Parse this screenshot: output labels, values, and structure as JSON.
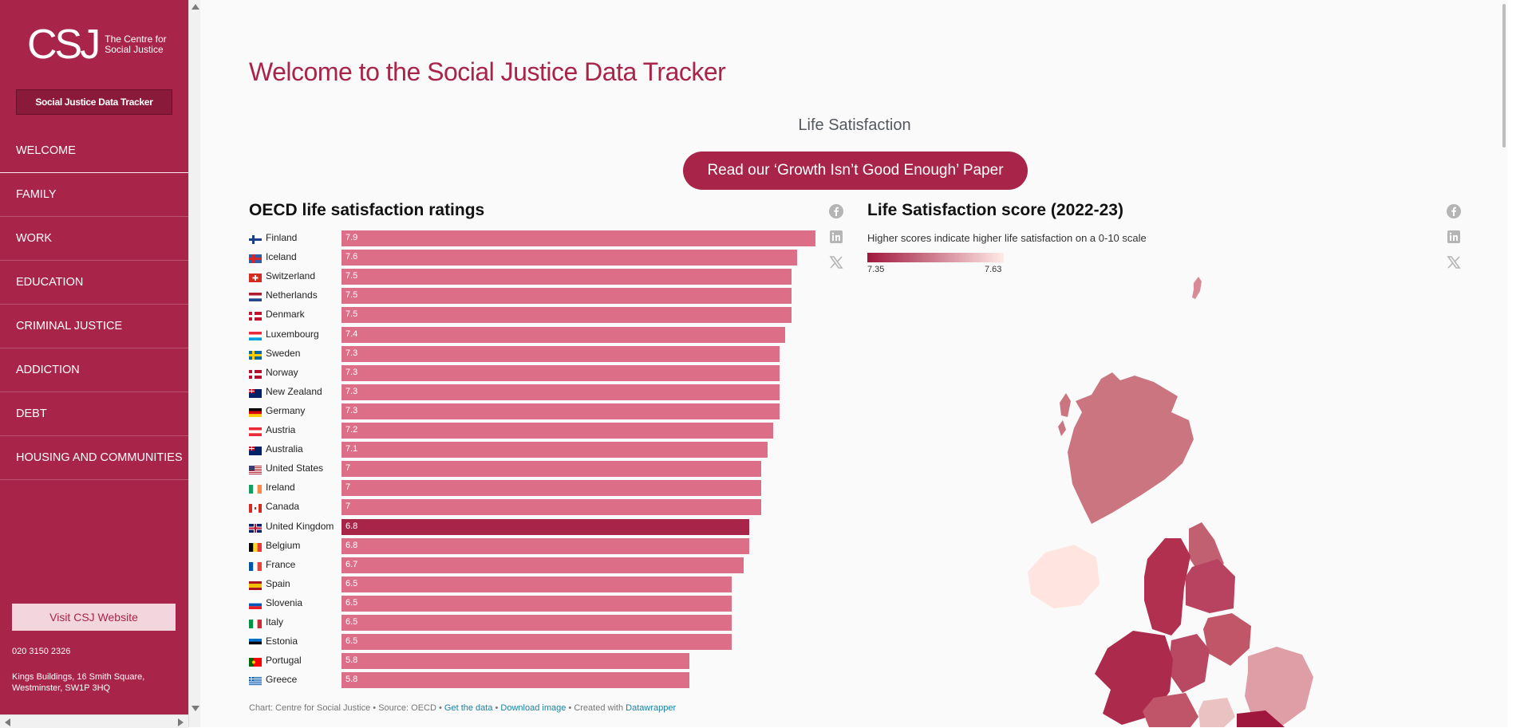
{
  "sidebar": {
    "logo_mark": "CSJ",
    "logo_text_1": "The Centre for",
    "logo_text_2": "Social Justice",
    "tracker_button": "Social Justice Data Tracker",
    "nav": [
      "WELCOME",
      "FAMILY",
      "WORK",
      "EDUCATION",
      "CRIMINAL JUSTICE",
      "ADDICTION",
      "DEBT",
      "HOUSING AND COMMUNITIES"
    ],
    "visit_button": "Visit CSJ Website",
    "phone": "020 3150 2326",
    "address_1": "Kings Buildings, 16 Smith Square,",
    "address_2": "Westminster, SW1P 3HQ"
  },
  "main": {
    "title": "Welcome to the Social Justice Data Tracker",
    "section": "Life Satisfaction",
    "paper_button": "Read our ‘Growth Isn’t Good Enough’ Paper"
  },
  "chart_data": [
    {
      "type": "bar",
      "title": "OECD life satisfaction ratings",
      "categories": [
        "Finland",
        "Iceland",
        "Switzerland",
        "Netherlands",
        "Denmark",
        "Luxembourg",
        "Sweden",
        "Norway",
        "New Zealand",
        "Germany",
        "Austria",
        "Australia",
        "United States",
        "Ireland",
        "Canada",
        "United Kingdom",
        "Belgium",
        "France",
        "Spain",
        "Slovenia",
        "Italy",
        "Estonia",
        "Portugal",
        "Greece"
      ],
      "values": [
        7.9,
        7.6,
        7.5,
        7.5,
        7.5,
        7.4,
        7.3,
        7.3,
        7.3,
        7.3,
        7.2,
        7.1,
        7,
        7,
        7,
        6.8,
        6.8,
        6.7,
        6.5,
        6.5,
        6.5,
        6.5,
        5.8,
        5.8
      ],
      "labels": [
        "7.9",
        "7.6",
        "7.5",
        "7.5",
        "7.5",
        "7.4",
        "7.3",
        "7.3",
        "7.3",
        "7.3",
        "7.2",
        "7.1",
        "7",
        "7",
        "7",
        "6.8",
        "6.8",
        "6.7",
        "6.5",
        "6.5",
        "6.5",
        "6.5",
        "5.8",
        "5.8"
      ],
      "highlight": "United Kingdom",
      "orientation": "horizontal",
      "xlim": [
        0,
        7.9
      ],
      "colors": {
        "bar": "#dd6e88",
        "highlight": "#a92449"
      }
    },
    {
      "type": "choropleth",
      "title": "Life Satisfaction score (2022-23)",
      "subtitle": "Higher scores indicate higher life satisfaction on a 0-10 scale",
      "legend_min": "7.35",
      "legend_max": "7.63",
      "colors": {
        "min": "#a0173d",
        "max": "#ffeae8"
      }
    }
  ],
  "footer": {
    "credit": "Chart: Centre for Social Justice • Source: OECD • ",
    "get_data": "Get the data",
    "sep1": " • ",
    "download": "Download image",
    "sep2": " • Created with ",
    "datawrapper": "Datawrapper"
  },
  "icons": [
    "facebook-icon",
    "linkedin-icon",
    "x-icon"
  ]
}
